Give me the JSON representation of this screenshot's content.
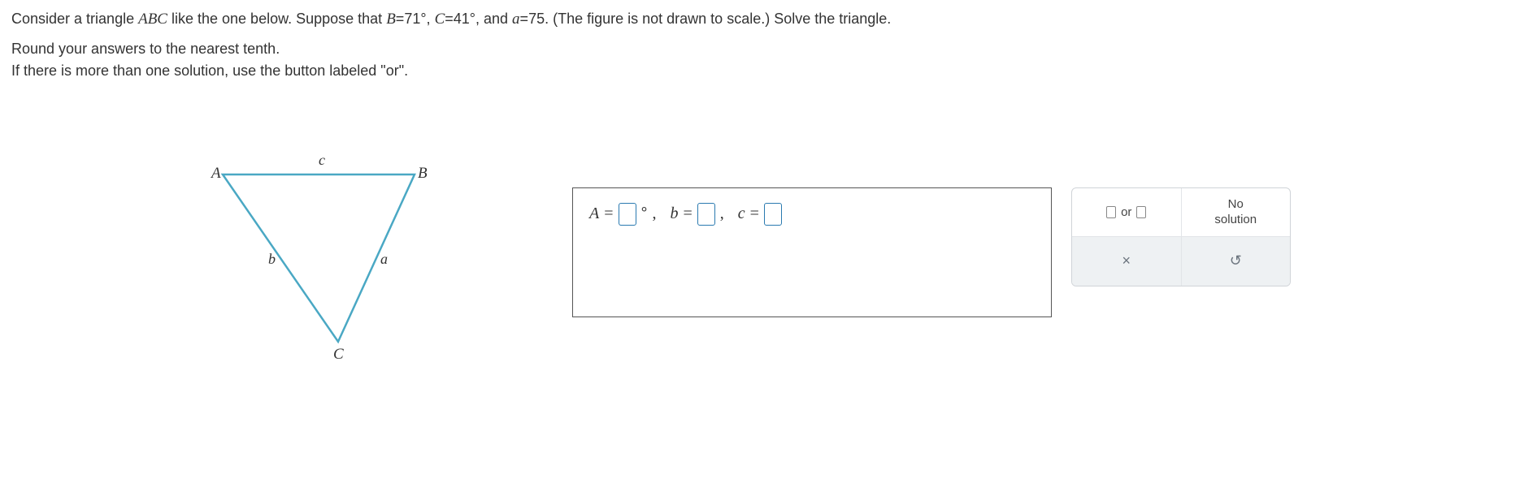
{
  "problem": {
    "prefix": "Consider a triangle ",
    "triangle_name": "ABC",
    "mid1": " like the one below. Suppose that ",
    "B_var": "B",
    "eq": "=",
    "B_val": "71°",
    "mid2": ", ",
    "C_var": "C",
    "C_val": "41°",
    "mid3": ", and ",
    "a_var": "a",
    "a_val": "75",
    "suffix": ". (The figure is not drawn to scale.) Solve the triangle."
  },
  "instructions": {
    "line1": "Round your answers to the nearest tenth.",
    "line2": "If there is more than one solution, use the button labeled \"or\"."
  },
  "figure": {
    "vertices": {
      "A": "A",
      "B": "B",
      "C": "C"
    },
    "sides": {
      "a": "a",
      "b": "b",
      "c": "c"
    },
    "stroke_color": "#4aa8c4",
    "stroke_width": 2.5,
    "points": {
      "A": [
        10,
        14
      ],
      "B": [
        246,
        14
      ],
      "C": [
        152,
        220
      ]
    }
  },
  "answer": {
    "A_label": "A",
    "b_label": "b",
    "c_label": "c",
    "eq": " = ",
    "deg": "°",
    "comma": ","
  },
  "tools": {
    "or_label": "or",
    "no_solution_line1": "No",
    "no_solution_line2": "solution",
    "close": "×",
    "undo": "↺"
  },
  "colors": {
    "input_border": "#2a7ab0",
    "panel_border": "#d0d4d8",
    "panel_bottom_bg": "#eef1f3",
    "text": "#333333"
  }
}
